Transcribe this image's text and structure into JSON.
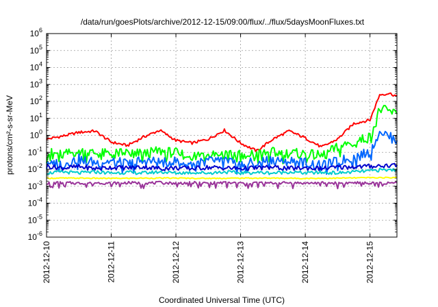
{
  "chart_data": {
    "type": "line",
    "title": "/data/run/goesPlots/archive/2012-12-15/09:00/flux/../flux/5daysMoonFluxes.txt",
    "xlabel": "Coordinated Universal Time (UTC)",
    "ylabel": "protons/cm²-s-sr-MeV",
    "y_scale": "log",
    "ylim": [
      1e-06,
      1000000.0
    ],
    "xlim": [
      "2012-12-10 00:00",
      "2012-12-15 10:00"
    ],
    "grid": true,
    "legend": "none",
    "x_ticks": [
      "2012-12-10",
      "2012-12-11",
      "2012-12-12",
      "2012-12-13",
      "2012-12-14",
      "2012-12-15"
    ],
    "y_ticks": [
      {
        "base": "10",
        "exp": "-6",
        "value": 1e-06
      },
      {
        "base": "10",
        "exp": "-5",
        "value": 1e-05
      },
      {
        "base": "10",
        "exp": "-4",
        "value": 0.0001
      },
      {
        "base": "10",
        "exp": "-3",
        "value": 0.001
      },
      {
        "base": "10",
        "exp": "-2",
        "value": 0.01
      },
      {
        "base": "10",
        "exp": "-1",
        "value": 0.1
      },
      {
        "base": "10",
        "exp": "0",
        "value": 1
      },
      {
        "base": "10",
        "exp": "1",
        "value": 10
      },
      {
        "base": "10",
        "exp": "2",
        "value": 100
      },
      {
        "base": "10",
        "exp": "3",
        "value": 1000
      },
      {
        "base": "10",
        "exp": "4",
        "value": 10000
      },
      {
        "base": "10",
        "exp": "5",
        "value": 100000
      },
      {
        "base": "10",
        "exp": "6",
        "value": 1000000
      }
    ],
    "series": [
      {
        "color": "#ff0000",
        "x": [
          0.0,
          0.25,
          0.5,
          0.75,
          1.0,
          1.25,
          1.5,
          1.75,
          2.0,
          2.25,
          2.5,
          2.75,
          3.0,
          3.25,
          3.5,
          3.75,
          4.0,
          4.25,
          4.5,
          4.75,
          5.0,
          5.15,
          5.3,
          5.42
        ],
        "y": [
          0.6,
          0.9,
          1.5,
          1.8,
          0.4,
          0.25,
          0.8,
          2.0,
          0.5,
          0.35,
          0.6,
          2.0,
          0.35,
          0.12,
          0.6,
          1.8,
          0.7,
          0.2,
          0.6,
          5.0,
          8.0,
          250,
          300,
          200
        ]
      },
      {
        "color": "#00ff00",
        "x": [
          0.0,
          0.25,
          0.5,
          0.75,
          1.0,
          1.25,
          1.5,
          1.75,
          2.0,
          2.25,
          2.5,
          2.75,
          3.0,
          3.25,
          3.5,
          3.75,
          4.0,
          4.25,
          4.5,
          4.75,
          5.0,
          5.15,
          5.3,
          5.42
        ],
        "y": [
          0.1,
          0.07,
          0.12,
          0.09,
          0.08,
          0.1,
          0.08,
          0.12,
          0.09,
          0.06,
          0.09,
          0.1,
          0.07,
          0.08,
          0.1,
          0.09,
          0.08,
          0.06,
          0.2,
          0.4,
          0.8,
          35,
          25,
          18
        ]
      },
      {
        "color": "#0066ff",
        "x": [
          0.0,
          0.25,
          0.5,
          0.75,
          1.0,
          1.25,
          1.5,
          1.75,
          2.0,
          2.25,
          2.5,
          2.75,
          3.0,
          3.25,
          3.5,
          3.75,
          4.0,
          4.25,
          4.5,
          4.75,
          5.0,
          5.15,
          5.3,
          5.42
        ],
        "y": [
          0.03,
          0.02,
          0.04,
          0.025,
          0.03,
          0.02,
          0.035,
          0.025,
          0.03,
          0.02,
          0.03,
          0.035,
          0.02,
          0.025,
          0.04,
          0.03,
          0.025,
          0.015,
          0.03,
          0.05,
          0.1,
          2.0,
          0.8,
          0.5
        ]
      },
      {
        "color": "#0000cc",
        "x": [
          0.0,
          0.25,
          0.5,
          0.75,
          1.0,
          1.25,
          1.5,
          1.75,
          2.0,
          2.25,
          2.5,
          2.75,
          3.0,
          3.25,
          3.5,
          3.75,
          4.0,
          4.25,
          4.5,
          4.75,
          5.0,
          5.15,
          5.3,
          5.42
        ],
        "y": [
          0.015,
          0.012,
          0.014,
          0.011,
          0.013,
          0.012,
          0.014,
          0.011,
          0.012,
          0.011,
          0.013,
          0.012,
          0.011,
          0.012,
          0.013,
          0.011,
          0.012,
          0.011,
          0.013,
          0.014,
          0.015,
          0.016,
          0.017,
          0.018
        ]
      },
      {
        "color": "#00cccc",
        "x": [
          0.0,
          0.25,
          0.5,
          0.75,
          1.0,
          1.25,
          1.5,
          1.75,
          2.0,
          2.25,
          2.5,
          2.75,
          3.0,
          3.25,
          3.5,
          3.75,
          4.0,
          4.25,
          4.5,
          4.75,
          5.0,
          5.15,
          5.3,
          5.42
        ],
        "y": [
          0.006,
          0.007,
          0.006,
          0.007,
          0.006,
          0.0065,
          0.006,
          0.007,
          0.006,
          0.0065,
          0.006,
          0.007,
          0.006,
          0.0065,
          0.006,
          0.007,
          0.006,
          0.0065,
          0.006,
          0.007,
          0.008,
          0.009,
          0.009,
          0.01
        ]
      },
      {
        "color": "#ffff00",
        "x": [
          0.0,
          0.5,
          1.0,
          1.5,
          2.0,
          2.5,
          3.0,
          3.5,
          4.0,
          4.5,
          5.0,
          5.42
        ],
        "y": [
          0.003,
          0.003,
          0.0029,
          0.003,
          0.003,
          0.0029,
          0.003,
          0.003,
          0.0029,
          0.003,
          0.0032,
          0.0032
        ]
      },
      {
        "color": "#993399",
        "x": [
          0.0,
          0.25,
          0.5,
          0.75,
          1.0,
          1.25,
          1.5,
          1.75,
          2.0,
          2.25,
          2.5,
          2.75,
          3.0,
          3.25,
          3.5,
          3.75,
          4.0,
          4.25,
          4.5,
          4.75,
          5.0,
          5.15,
          5.3,
          5.42
        ],
        "y": [
          0.0015,
          0.0016,
          0.0015,
          0.0016,
          0.0015,
          0.0016,
          0.0015,
          0.0016,
          0.0015,
          0.0016,
          0.0015,
          0.0016,
          0.0015,
          0.0016,
          0.0015,
          0.0016,
          0.0015,
          0.0016,
          0.0015,
          0.0016,
          0.0015,
          0.0016,
          0.0015,
          0.0016
        ]
      }
    ]
  }
}
